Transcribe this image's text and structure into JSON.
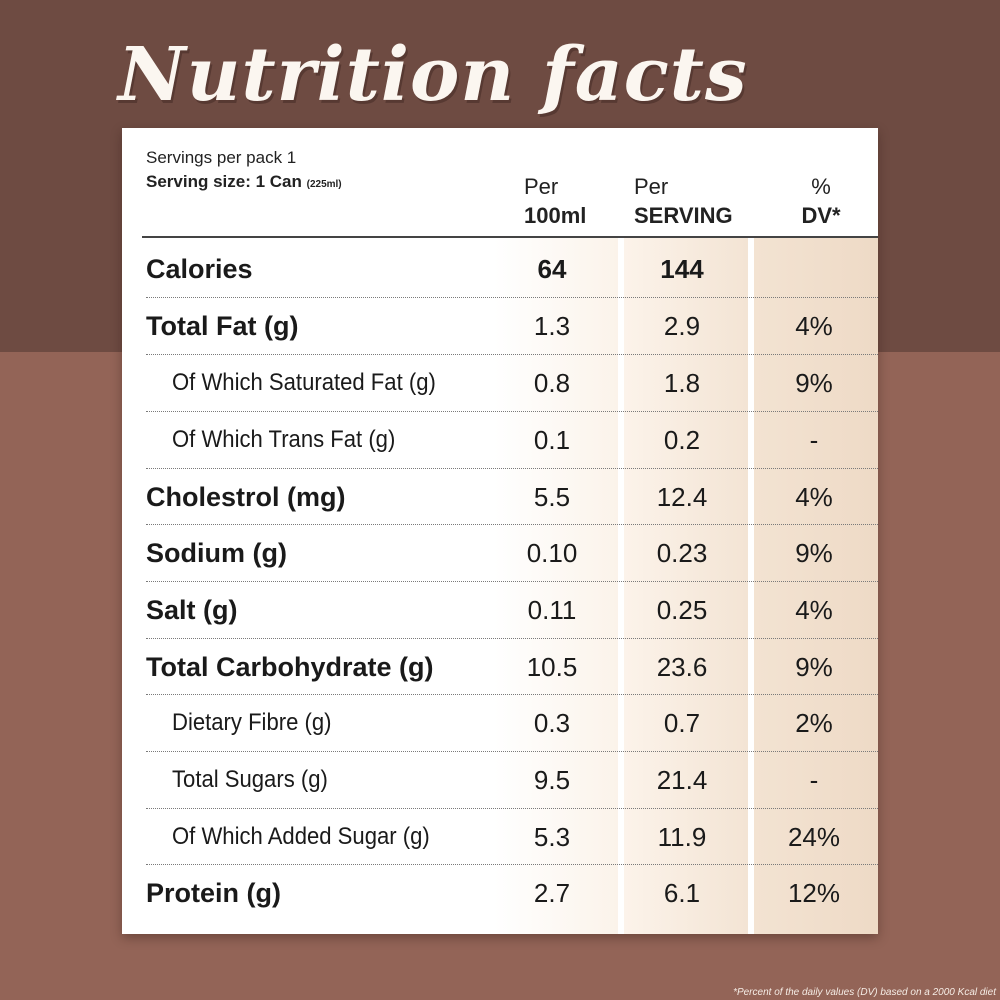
{
  "title": "Nutrition facts",
  "servings_per_pack": "Servings per pack 1",
  "serving_size_label": "Serving size: 1 Can",
  "serving_size_detail": "(225ml)",
  "headers": {
    "col1_top": "Per",
    "col1_bottom": "100ml",
    "col2_top": "Per",
    "col2_bottom": "SERVING",
    "col3_top": "%",
    "col3_bottom": "DV*"
  },
  "rows": [
    {
      "label": "Calories",
      "per100": "64",
      "perServing": "144",
      "dv": ""
    },
    {
      "label": "Total Fat (g)",
      "per100": "1.3",
      "perServing": "2.9",
      "dv": "4%"
    },
    {
      "label": "Of Which Saturated Fat (g)",
      "per100": "0.8",
      "perServing": "1.8",
      "dv": "9%"
    },
    {
      "label": "Of Which Trans Fat (g)",
      "per100": "0.1",
      "perServing": "0.2",
      "dv": "-"
    },
    {
      "label": "Cholestrol (mg)",
      "per100": "5.5",
      "perServing": "12.4",
      "dv": "4%"
    },
    {
      "label": "Sodium (g)",
      "per100": "0.10",
      "perServing": "0.23",
      "dv": "9%"
    },
    {
      "label": "Salt (g)",
      "per100": "0.11",
      "perServing": "0.25",
      "dv": "4%"
    },
    {
      "label": "Total Carbohydrate (g)",
      "per100": "10.5",
      "perServing": "23.6",
      "dv": "9%"
    },
    {
      "label": "Dietary Fibre (g)",
      "per100": "0.3",
      "perServing": "0.7",
      "dv": "2%"
    },
    {
      "label": "Total Sugars (g)",
      "per100": "9.5",
      "perServing": "21.4",
      "dv": "-"
    },
    {
      "label": "Of Which Added Sugar (g)",
      "per100": "5.3",
      "perServing": "11.9",
      "dv": "24%"
    },
    {
      "label": "Protein (g)",
      "per100": "2.7",
      "perServing": "6.1",
      "dv": "12%"
    }
  ],
  "footnote": "*Percent of the daily values (DV) based on a 2000 Kcal diet",
  "colors": {
    "background_top": "#6e4b42",
    "background_bottom": "#936457",
    "panel": "#ffffff",
    "title": "#fbf6f0"
  }
}
